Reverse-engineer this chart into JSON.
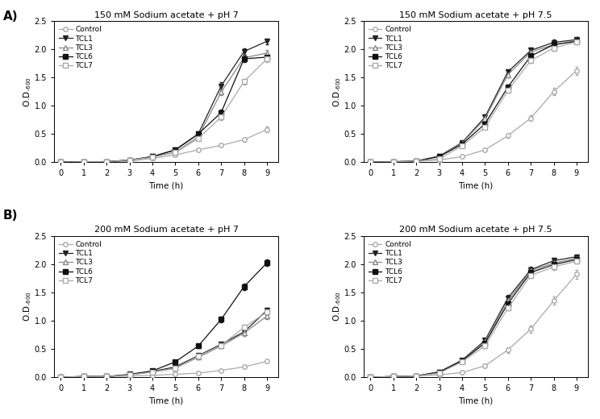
{
  "time": [
    0,
    1,
    2,
    3,
    4,
    5,
    6,
    7,
    8,
    9
  ],
  "panels": [
    {
      "title": "150 mM Sodium acetate + pH 7",
      "series": {
        "Control": [
          0.0,
          0.01,
          0.01,
          0.02,
          0.07,
          0.13,
          0.22,
          0.3,
          0.4,
          0.58
        ],
        "TCL1": [
          0.0,
          0.01,
          0.01,
          0.04,
          0.1,
          0.22,
          0.5,
          1.35,
          1.96,
          2.14
        ],
        "TCL3": [
          0.0,
          0.01,
          0.01,
          0.04,
          0.09,
          0.18,
          0.45,
          1.24,
          1.85,
          1.93
        ],
        "TCL6": [
          0.0,
          0.01,
          0.01,
          0.04,
          0.1,
          0.22,
          0.5,
          0.88,
          1.83,
          1.86
        ],
        "TCL7": [
          0.0,
          0.01,
          0.01,
          0.04,
          0.09,
          0.17,
          0.42,
          0.8,
          1.43,
          1.83
        ]
      },
      "errors": {
        "Control": [
          0.005,
          0.005,
          0.005,
          0.01,
          0.01,
          0.02,
          0.02,
          0.03,
          0.04,
          0.05
        ],
        "TCL1": [
          0.005,
          0.005,
          0.005,
          0.01,
          0.01,
          0.02,
          0.04,
          0.06,
          0.06,
          0.05
        ],
        "TCL3": [
          0.005,
          0.005,
          0.005,
          0.01,
          0.01,
          0.02,
          0.04,
          0.05,
          0.06,
          0.05
        ],
        "TCL6": [
          0.005,
          0.005,
          0.005,
          0.01,
          0.01,
          0.02,
          0.04,
          0.05,
          0.05,
          0.05
        ],
        "TCL7": [
          0.005,
          0.005,
          0.005,
          0.01,
          0.01,
          0.02,
          0.03,
          0.05,
          0.05,
          0.05
        ]
      }
    },
    {
      "title": "150 mM Sodium acetate + pH 7.5",
      "series": {
        "Control": [
          0.0,
          0.01,
          0.02,
          0.04,
          0.1,
          0.22,
          0.47,
          0.78,
          1.25,
          1.62
        ],
        "TCL1": [
          0.0,
          0.01,
          0.02,
          0.11,
          0.35,
          0.8,
          1.6,
          1.98,
          2.12,
          2.17
        ],
        "TCL3": [
          0.0,
          0.01,
          0.02,
          0.11,
          0.34,
          0.77,
          1.55,
          1.95,
          2.08,
          2.15
        ],
        "TCL6": [
          0.0,
          0.01,
          0.02,
          0.1,
          0.32,
          0.68,
          1.33,
          1.88,
          2.08,
          2.14
        ],
        "TCL7": [
          0.0,
          0.01,
          0.02,
          0.06,
          0.29,
          0.62,
          1.27,
          1.8,
          2.02,
          2.13
        ]
      },
      "errors": {
        "Control": [
          0.005,
          0.005,
          0.005,
          0.01,
          0.02,
          0.02,
          0.04,
          0.05,
          0.06,
          0.07
        ],
        "TCL1": [
          0.005,
          0.005,
          0.005,
          0.01,
          0.02,
          0.04,
          0.05,
          0.05,
          0.05,
          0.04
        ],
        "TCL3": [
          0.005,
          0.005,
          0.005,
          0.01,
          0.02,
          0.04,
          0.05,
          0.05,
          0.05,
          0.04
        ],
        "TCL6": [
          0.005,
          0.005,
          0.005,
          0.01,
          0.02,
          0.03,
          0.04,
          0.05,
          0.05,
          0.04
        ],
        "TCL7": [
          0.005,
          0.005,
          0.005,
          0.01,
          0.02,
          0.03,
          0.04,
          0.04,
          0.05,
          0.04
        ]
      }
    },
    {
      "title": "200 mM Sodium acetate + pH 7",
      "series": {
        "Control": [
          0.0,
          0.01,
          0.01,
          0.02,
          0.03,
          0.05,
          0.07,
          0.12,
          0.18,
          0.28
        ],
        "TCL1": [
          0.0,
          0.01,
          0.01,
          0.04,
          0.1,
          0.18,
          0.38,
          0.58,
          0.8,
          1.18
        ],
        "TCL3": [
          0.0,
          0.01,
          0.01,
          0.04,
          0.09,
          0.16,
          0.35,
          0.55,
          0.78,
          1.08
        ],
        "TCL6": [
          0.0,
          0.01,
          0.01,
          0.05,
          0.11,
          0.27,
          0.55,
          1.02,
          1.6,
          2.02
        ],
        "TCL7": [
          0.0,
          0.01,
          0.01,
          0.04,
          0.09,
          0.15,
          0.37,
          0.56,
          0.88,
          1.15
        ]
      },
      "errors": {
        "Control": [
          0.005,
          0.005,
          0.005,
          0.005,
          0.005,
          0.01,
          0.01,
          0.02,
          0.02,
          0.03
        ],
        "TCL1": [
          0.005,
          0.005,
          0.005,
          0.01,
          0.01,
          0.02,
          0.03,
          0.04,
          0.05,
          0.05
        ],
        "TCL3": [
          0.005,
          0.005,
          0.005,
          0.01,
          0.01,
          0.02,
          0.03,
          0.04,
          0.05,
          0.05
        ],
        "TCL6": [
          0.005,
          0.005,
          0.005,
          0.01,
          0.01,
          0.02,
          0.04,
          0.05,
          0.06,
          0.06
        ],
        "TCL7": [
          0.005,
          0.005,
          0.005,
          0.01,
          0.01,
          0.02,
          0.03,
          0.04,
          0.05,
          0.05
        ]
      }
    },
    {
      "title": "200 mM Sodium acetate + pH 7.5",
      "series": {
        "Control": [
          0.0,
          0.01,
          0.02,
          0.04,
          0.08,
          0.2,
          0.48,
          0.85,
          1.35,
          1.82
        ],
        "TCL1": [
          0.0,
          0.01,
          0.02,
          0.09,
          0.3,
          0.65,
          1.4,
          1.9,
          2.06,
          2.13
        ],
        "TCL3": [
          0.0,
          0.01,
          0.02,
          0.09,
          0.29,
          0.63,
          1.35,
          1.88,
          2.02,
          2.1
        ],
        "TCL6": [
          0.0,
          0.01,
          0.02,
          0.09,
          0.29,
          0.6,
          1.3,
          1.85,
          1.99,
          2.08
        ],
        "TCL7": [
          0.0,
          0.01,
          0.02,
          0.07,
          0.27,
          0.55,
          1.22,
          1.8,
          1.95,
          2.05
        ]
      },
      "errors": {
        "Control": [
          0.005,
          0.005,
          0.005,
          0.01,
          0.02,
          0.03,
          0.05,
          0.06,
          0.07,
          0.08
        ],
        "TCL1": [
          0.005,
          0.005,
          0.005,
          0.01,
          0.02,
          0.04,
          0.05,
          0.05,
          0.05,
          0.04
        ],
        "TCL3": [
          0.005,
          0.005,
          0.005,
          0.01,
          0.02,
          0.04,
          0.05,
          0.05,
          0.05,
          0.04
        ],
        "TCL6": [
          0.005,
          0.005,
          0.005,
          0.01,
          0.02,
          0.03,
          0.04,
          0.05,
          0.05,
          0.04
        ],
        "TCL7": [
          0.005,
          0.005,
          0.005,
          0.01,
          0.02,
          0.03,
          0.04,
          0.04,
          0.05,
          0.04
        ]
      }
    }
  ],
  "series_styles": {
    "Control": {
      "color": "#aaaaaa",
      "marker": "o",
      "markerfacecolor": "white",
      "markersize": 4,
      "linewidth": 0.9
    },
    "TCL1": {
      "color": "#222222",
      "marker": "v",
      "markerfacecolor": "#222222",
      "markersize": 4,
      "linewidth": 0.9
    },
    "TCL3": {
      "color": "#888888",
      "marker": "^",
      "markerfacecolor": "white",
      "markersize": 4,
      "linewidth": 0.9
    },
    "TCL6": {
      "color": "#111111",
      "marker": "s",
      "markerfacecolor": "#111111",
      "markersize": 4,
      "linewidth": 0.9
    },
    "TCL7": {
      "color": "#aaaaaa",
      "marker": "s",
      "markerfacecolor": "white",
      "markersize": 4,
      "linewidth": 0.9
    }
  },
  "series_names": [
    "Control",
    "TCL1",
    "TCL3",
    "TCL6",
    "TCL7"
  ],
  "xlabel": "Time (h)",
  "ylim": [
    0.0,
    2.5
  ],
  "yticks": [
    0.0,
    0.5,
    1.0,
    1.5,
    2.0,
    2.5
  ],
  "xticks": [
    0,
    1,
    2,
    3,
    4,
    5,
    6,
    7,
    8,
    9
  ],
  "background_color": "#ffffff",
  "grid_visible": false,
  "label_fontsize": 7.5,
  "title_fontsize": 8,
  "tick_fontsize": 7,
  "legend_fontsize": 6.5
}
